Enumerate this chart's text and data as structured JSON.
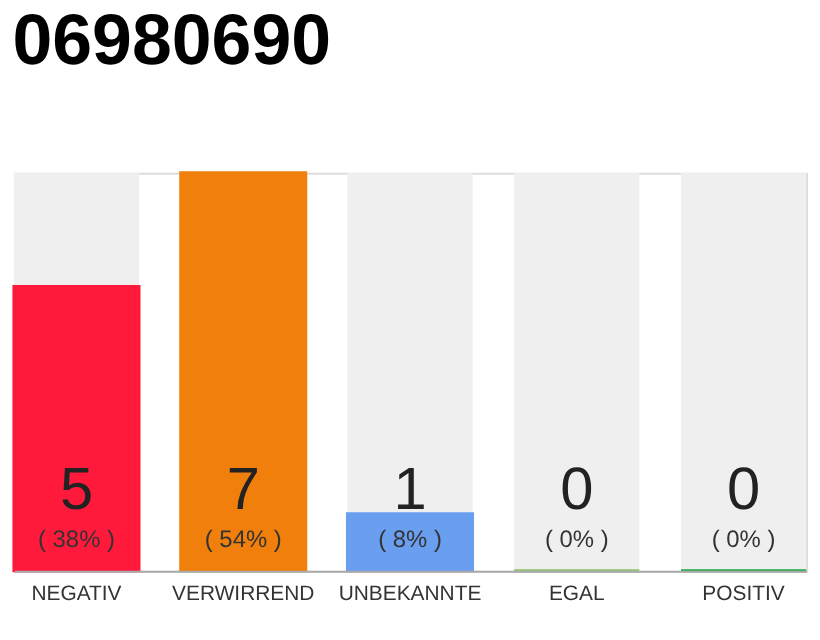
{
  "chart_data": {
    "type": "bar",
    "title": "06980690",
    "categories": [
      "NEGATIV",
      "VERWIRREND",
      "UNBEKANNTE",
      "EGAL",
      "POSITIV"
    ],
    "values": [
      5,
      7,
      1,
      0,
      0
    ],
    "colors": [
      "#ff1a3c",
      "#f07f0c",
      "#6a9ff0",
      "#8cc46a",
      "#22aa44"
    ],
    "data_labels": true,
    "annotations": [
      "( 38% )",
      "( 54% )",
      "( 8% )",
      "( 0% )",
      "( 0% )"
    ],
    "tick_labels": "x"
  }
}
